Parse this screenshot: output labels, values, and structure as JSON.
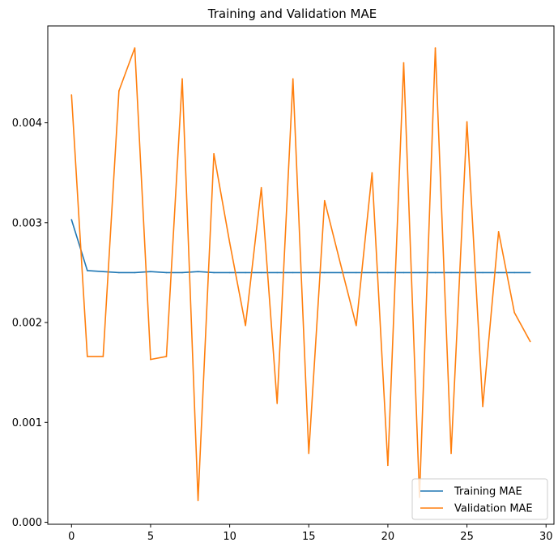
{
  "chart_data": {
    "type": "line",
    "title": "Training and Validation MAE",
    "xlabel": "",
    "ylabel": "",
    "xlim": [
      -1.5,
      30.5
    ],
    "ylim": [
      -2e-05,
      0.00497
    ],
    "xticks": [
      0,
      5,
      10,
      15,
      20,
      25,
      30
    ],
    "xtick_labels": [
      "0",
      "5",
      "10",
      "15",
      "20",
      "25",
      "30"
    ],
    "yticks": [
      0.0,
      0.001,
      0.002,
      0.003,
      0.004
    ],
    "ytick_labels": [
      "0.000",
      "0.001",
      "0.002",
      "0.003",
      "0.004"
    ],
    "grid": false,
    "legend_position": "lower-right",
    "x": [
      0,
      1,
      2,
      3,
      4,
      5,
      6,
      7,
      8,
      9,
      10,
      11,
      12,
      13,
      14,
      15,
      16,
      17,
      18,
      19,
      20,
      21,
      22,
      23,
      24,
      25,
      26,
      27,
      28,
      29
    ],
    "series": [
      {
        "name": "Training MAE",
        "color": "#1f77b4",
        "values": [
          0.00303,
          0.00252,
          0.00251,
          0.0025,
          0.0025,
          0.00251,
          0.0025,
          0.0025,
          0.00251,
          0.0025,
          0.0025,
          0.0025,
          0.0025,
          0.0025,
          0.0025,
          0.0025,
          0.0025,
          0.0025,
          0.0025,
          0.0025,
          0.0025,
          0.0025,
          0.0025,
          0.0025,
          0.0025,
          0.0025,
          0.0025,
          0.0025,
          0.0025,
          0.0025
        ]
      },
      {
        "name": "Validation MAE",
        "color": "#ff7f0e",
        "values": [
          0.00428,
          0.00166,
          0.00166,
          0.00432,
          0.00475,
          0.00163,
          0.00166,
          0.00444,
          0.00022,
          0.00369,
          0.0028,
          0.00197,
          0.00335,
          0.00119,
          0.00444,
          0.00069,
          0.00322,
          0.00259,
          0.00197,
          0.0035,
          0.00057,
          0.0046,
          0.00025,
          0.00475,
          0.00069,
          0.00401,
          0.00116,
          0.00291,
          0.0021,
          0.00181
        ]
      }
    ]
  }
}
